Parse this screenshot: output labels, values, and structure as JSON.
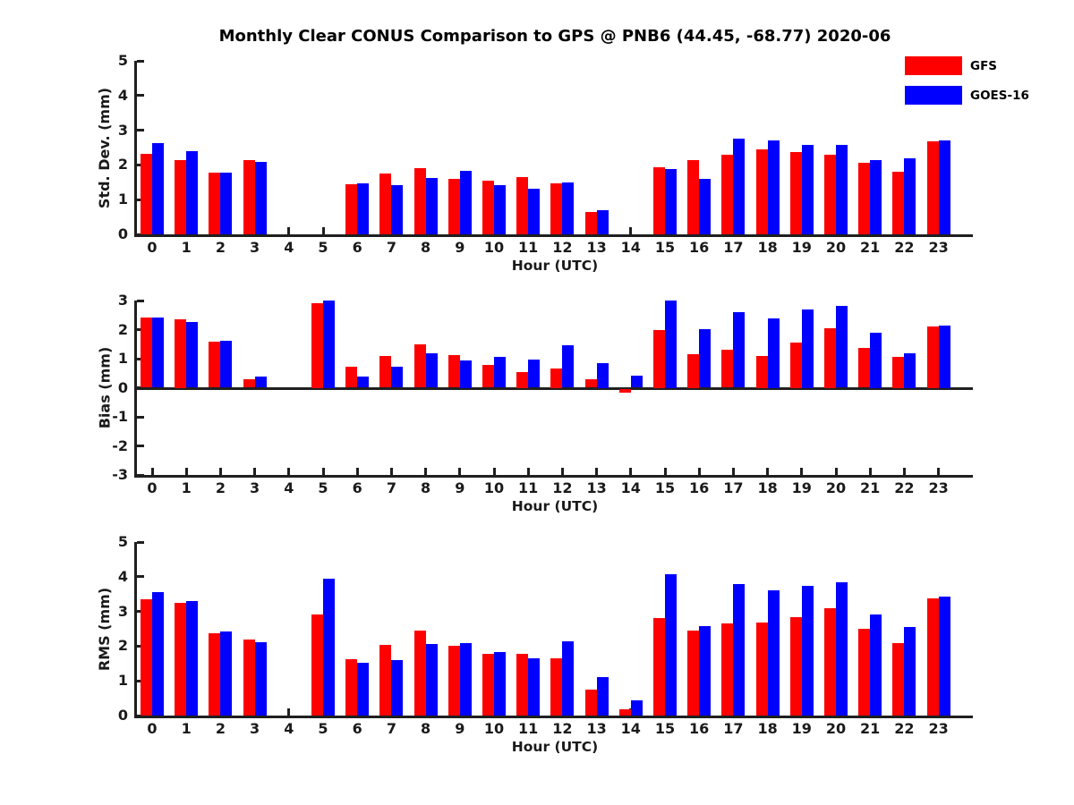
{
  "title": "Monthly Clear CONUS Comparison to GPS @ PNB6 (44.45, -68.77) 2020-06",
  "legend": {
    "items": [
      {
        "label": "GFS",
        "color": "#ff0000"
      },
      {
        "label": "GOES-16",
        "color": "#0000ff"
      }
    ]
  },
  "colors": {
    "gfs": "#ff0000",
    "goes16": "#0000ff",
    "axis": "#1f1f1f"
  },
  "chart_data": [
    {
      "type": "bar",
      "ylabel": "Std. Dev. (mm)",
      "xlabel": "Hour (UTC)",
      "ylim": [
        0,
        5
      ],
      "yticks": [
        0,
        1,
        2,
        3,
        4,
        5
      ],
      "grid": false,
      "legend_position": "top-right",
      "categories": [
        0,
        1,
        2,
        3,
        4,
        5,
        6,
        7,
        8,
        9,
        10,
        11,
        12,
        13,
        14,
        15,
        16,
        17,
        18,
        19,
        20,
        21,
        22,
        23
      ],
      "series": [
        {
          "name": "GFS",
          "color": "#ff0000",
          "values": [
            2.32,
            2.15,
            1.78,
            2.15,
            null,
            null,
            1.45,
            1.75,
            1.92,
            1.6,
            1.54,
            1.65,
            1.48,
            0.64,
            null,
            1.93,
            2.15,
            2.3,
            2.44,
            2.37,
            2.3,
            2.07,
            1.8,
            2.68
          ]
        },
        {
          "name": "GOES-16",
          "color": "#0000ff",
          "values": [
            2.62,
            2.4,
            1.78,
            2.1,
            null,
            null,
            1.47,
            1.43,
            1.62,
            1.83,
            1.42,
            1.31,
            1.5,
            0.7,
            null,
            1.88,
            1.6,
            2.75,
            2.7,
            2.57,
            2.57,
            2.13,
            2.2,
            2.7
          ]
        }
      ]
    },
    {
      "type": "bar",
      "ylabel": "Bias (mm)",
      "xlabel": "Hour (UTC)",
      "ylim": [
        -3,
        3
      ],
      "yticks": [
        3,
        2,
        1,
        0,
        -1,
        -2,
        -3
      ],
      "grid": false,
      "categories": [
        0,
        1,
        2,
        3,
        4,
        5,
        6,
        7,
        8,
        9,
        10,
        11,
        12,
        13,
        14,
        15,
        16,
        17,
        18,
        19,
        20,
        21,
        22,
        23
      ],
      "series": [
        {
          "name": "GFS",
          "color": "#ff0000",
          "values": [
            2.42,
            2.35,
            1.57,
            0.28,
            null,
            2.9,
            0.73,
            1.08,
            1.48,
            1.12,
            0.78,
            0.55,
            0.65,
            0.28,
            -0.15,
            2.0,
            1.15,
            1.32,
            1.1,
            1.55,
            2.05,
            1.38,
            1.05,
            2.1
          ]
        },
        {
          "name": "GOES-16",
          "color": "#0000ff",
          "values": [
            2.42,
            2.27,
            1.63,
            0.37,
            null,
            3.0,
            0.37,
            0.72,
            1.18,
            0.95,
            1.07,
            0.97,
            1.47,
            0.85,
            0.42,
            3.0,
            2.03,
            2.61,
            2.4,
            2.7,
            2.82,
            1.9,
            1.2,
            2.15
          ]
        }
      ]
    },
    {
      "type": "bar",
      "ylabel": "RMS (mm)",
      "xlabel": "Hour (UTC)",
      "ylim": [
        0,
        5
      ],
      "yticks": [
        0,
        1,
        2,
        3,
        4,
        5
      ],
      "grid": false,
      "categories": [
        0,
        1,
        2,
        3,
        4,
        5,
        6,
        7,
        8,
        9,
        10,
        11,
        12,
        13,
        14,
        15,
        16,
        17,
        18,
        19,
        20,
        21,
        22,
        23
      ],
      "series": [
        {
          "name": "GFS",
          "color": "#ff0000",
          "values": [
            3.35,
            3.24,
            2.37,
            2.18,
            null,
            2.9,
            1.62,
            2.03,
            2.44,
            2.01,
            1.77,
            1.78,
            1.64,
            0.75,
            0.18,
            2.8,
            2.45,
            2.65,
            2.68,
            2.84,
            3.1,
            2.5,
            2.08,
            3.38
          ]
        },
        {
          "name": "GOES-16",
          "color": "#0000ff",
          "values": [
            3.56,
            3.3,
            2.43,
            2.12,
            null,
            3.95,
            1.53,
            1.6,
            2.06,
            2.08,
            1.82,
            1.65,
            2.13,
            1.12,
            0.43,
            4.07,
            2.58,
            3.8,
            3.62,
            3.74,
            3.84,
            2.92,
            2.55,
            3.43
          ]
        }
      ]
    }
  ]
}
